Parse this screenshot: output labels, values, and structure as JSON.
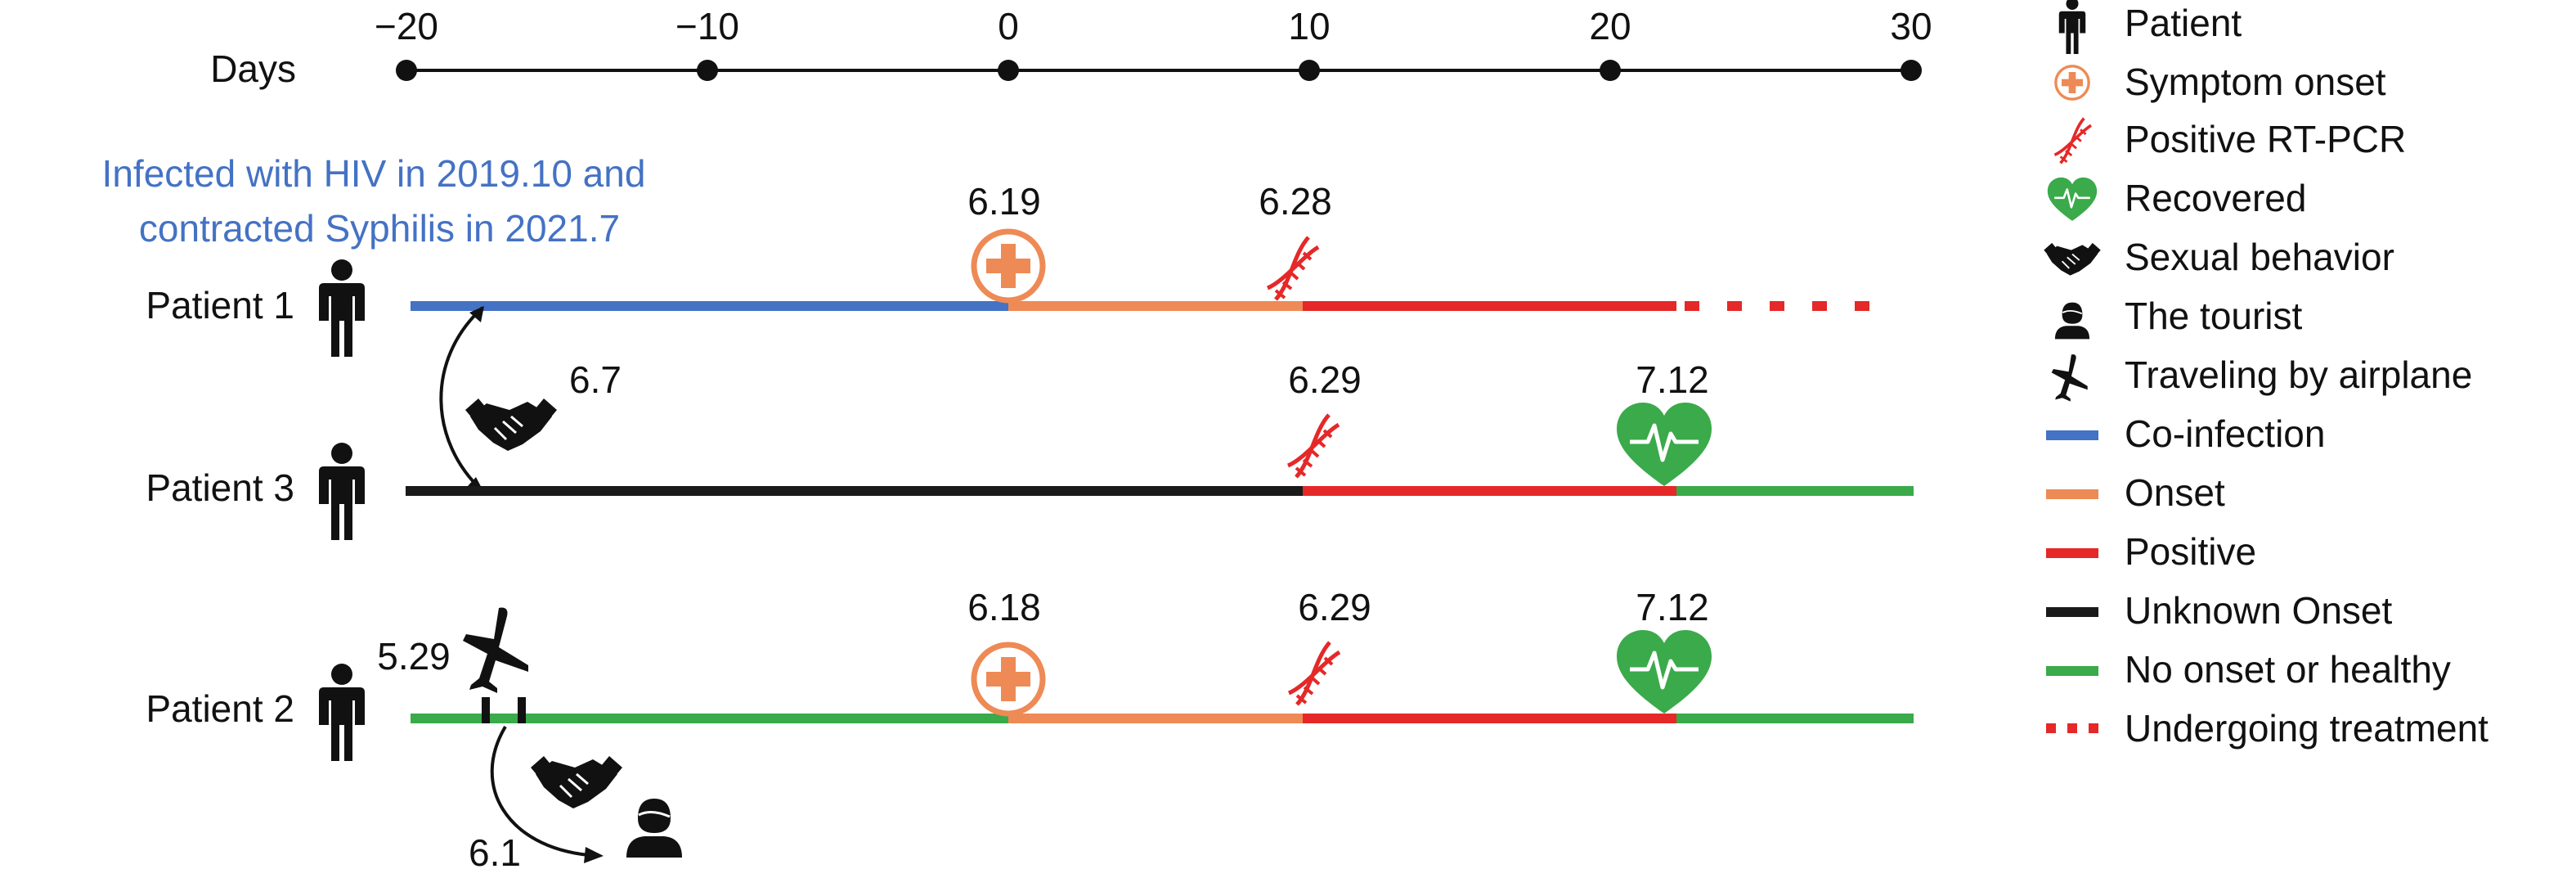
{
  "axis": {
    "label": "Days",
    "ticks": [
      "−20",
      "−10",
      "0",
      "10",
      "20",
      "30"
    ]
  },
  "annotation": {
    "line1": "Infected with HIV in 2019.10 and",
    "line2": "contracted Syphilis in 2021.7"
  },
  "patients": {
    "p1": {
      "label": "Patient 1",
      "onset_date": "6.19",
      "pcr_date": "6.28"
    },
    "p3": {
      "label": "Patient 3",
      "contact_date": "6.7",
      "pcr_date": "6.29",
      "recovered_date": "7.12"
    },
    "p2": {
      "label": "Patient 2",
      "flight_date": "5.29",
      "onset_date": "6.18",
      "pcr_date": "6.29",
      "recovered_date": "7.12",
      "tourist_date": "6.1"
    }
  },
  "colors": {
    "coinfection": "#4472c4",
    "onset": "#ee8a55",
    "positive": "#e52828",
    "unknown": "#1a1a1a",
    "healthy": "#3aaa4a"
  },
  "legend": [
    {
      "icon": "patient-icon",
      "label": "Patient"
    },
    {
      "icon": "symptom-onset-icon",
      "label": "Symptom onset"
    },
    {
      "icon": "dna-icon",
      "label": "Positive RT-PCR"
    },
    {
      "icon": "heart-icon",
      "label": "Recovered"
    },
    {
      "icon": "handshake-icon",
      "label": "Sexual behavior"
    },
    {
      "icon": "tourist-icon",
      "label": "The tourist"
    },
    {
      "icon": "airplane-icon",
      "label": "Traveling by airplane"
    },
    {
      "icon": "coinfection-line",
      "label": "Co-infection"
    },
    {
      "icon": "onset-line",
      "label": "Onset"
    },
    {
      "icon": "positive-line",
      "label": "Positive"
    },
    {
      "icon": "unknown-onset-line",
      "label": "Unknown Onset"
    },
    {
      "icon": "healthy-line",
      "label": "No onset or healthy"
    },
    {
      "icon": "treatment-dotted-line",
      "label": "Undergoing treatment"
    }
  ]
}
